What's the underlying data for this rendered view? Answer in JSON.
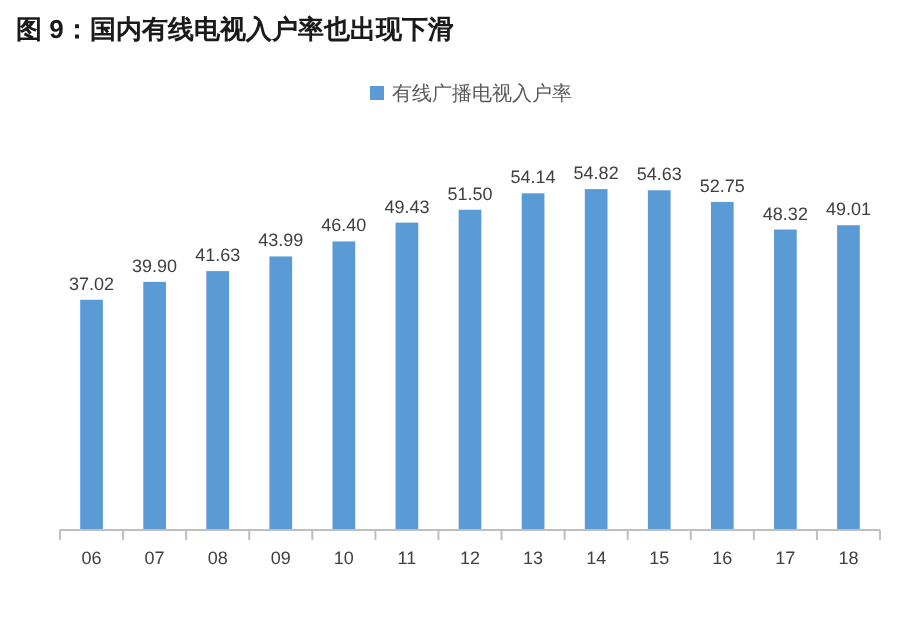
{
  "chart_data": {
    "type": "bar",
    "title": "图 9：国内有线电视入户率也出现下滑",
    "categories": [
      "06",
      "07",
      "08",
      "09",
      "10",
      "11",
      "12",
      "13",
      "14",
      "15",
      "16",
      "17",
      "18"
    ],
    "series": [
      {
        "name": "有线广播电视入户率",
        "color": "#5b9bd5",
        "values": [
          37.02,
          39.9,
          41.63,
          43.99,
          46.4,
          49.43,
          51.5,
          54.14,
          54.82,
          54.63,
          52.75,
          48.32,
          49.01
        ],
        "value_labels": [
          "37.02",
          "39.90",
          "41.63",
          "43.99",
          "46.40",
          "49.43",
          "51.50",
          "54.14",
          "54.82",
          "54.63",
          "52.75",
          "48.32",
          "49.01"
        ]
      }
    ],
    "legend": "top"
  }
}
